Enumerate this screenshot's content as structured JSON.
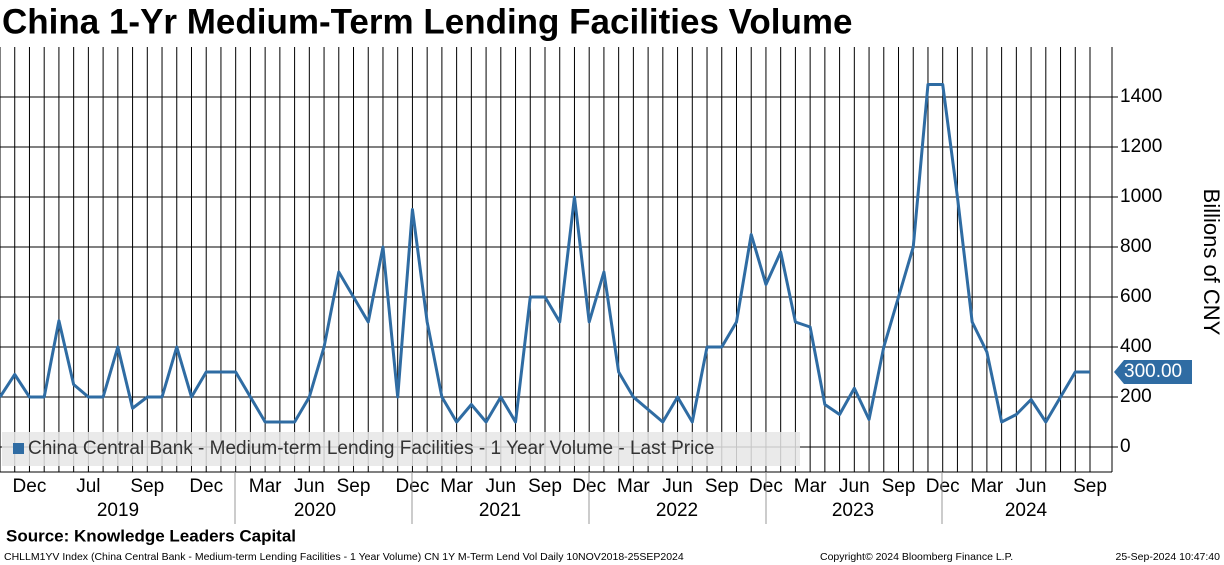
{
  "chart_data": {
    "type": "line",
    "title": "China 1-Yr Medium-Term Lending Facilities Volume",
    "y_axis_label": "Billions of CNY",
    "categories": [
      null,
      null,
      "Dec",
      null,
      null,
      null,
      "Jul",
      null,
      null,
      null,
      "Sep",
      null,
      null,
      null,
      "Dec",
      null,
      null,
      null,
      "Mar",
      null,
      null,
      "Jun",
      null,
      null,
      "Sep",
      null,
      null,
      null,
      "Dec",
      null,
      null,
      "Mar",
      null,
      null,
      "Jun",
      null,
      null,
      "Sep",
      null,
      null,
      "Dec",
      null,
      null,
      "Mar",
      null,
      null,
      "Jun",
      null,
      null,
      "Sep",
      null,
      null,
      "Dec",
      null,
      null,
      "Mar",
      null,
      null,
      "Jun",
      null,
      null,
      "Sep",
      null,
      null,
      "Dec",
      null,
      null,
      "Mar",
      null,
      null,
      "Jun",
      null,
      null,
      null,
      "Sep"
    ],
    "years": [
      "2019",
      "2020",
      "2021",
      "2022",
      "2023",
      "2024"
    ],
    "series": [
      {
        "name": "China Central Bank - Medium-term Lending Facilities - 1 Year Volume - Last Price",
        "color": "#2f6ca3",
        "values": [
          200,
          290,
          200,
          200,
          505,
          250,
          200,
          200,
          400,
          155,
          200,
          200,
          400,
          200,
          300,
          300,
          300,
          200,
          100,
          100,
          100,
          200,
          400,
          700,
          600,
          500,
          800,
          200,
          950,
          500,
          200,
          100,
          170,
          100,
          200,
          100,
          600,
          600,
          500,
          1000,
          500,
          700,
          300,
          200,
          150,
          100,
          200,
          100,
          400,
          400,
          500,
          850,
          650,
          780,
          500,
          480,
          170,
          130,
          235,
          110,
          400,
          600,
          800,
          1450,
          1450,
          1000,
          500,
          380,
          100,
          130,
          190,
          100,
          200,
          300,
          300
        ],
        "last_label": "300.00"
      }
    ],
    "ylim": [
      -100,
      1600
    ],
    "yticks": [
      0,
      200,
      400,
      600,
      800,
      1000,
      1200,
      1400
    ],
    "grid": true,
    "source": "Source: Knowledge Leaders Capital",
    "footer_left": "CHLLM1YV Index (China Central Bank - Medium-term Lending Facilities - 1 Year Volume) CN 1Y M-Term Lend Vol  Daily 10NOV2018-25SEP2024",
    "footer_center": "Copyright© 2024 Bloomberg Finance L.P.",
    "footer_right": "25-Sep-2024 10:47:40"
  }
}
